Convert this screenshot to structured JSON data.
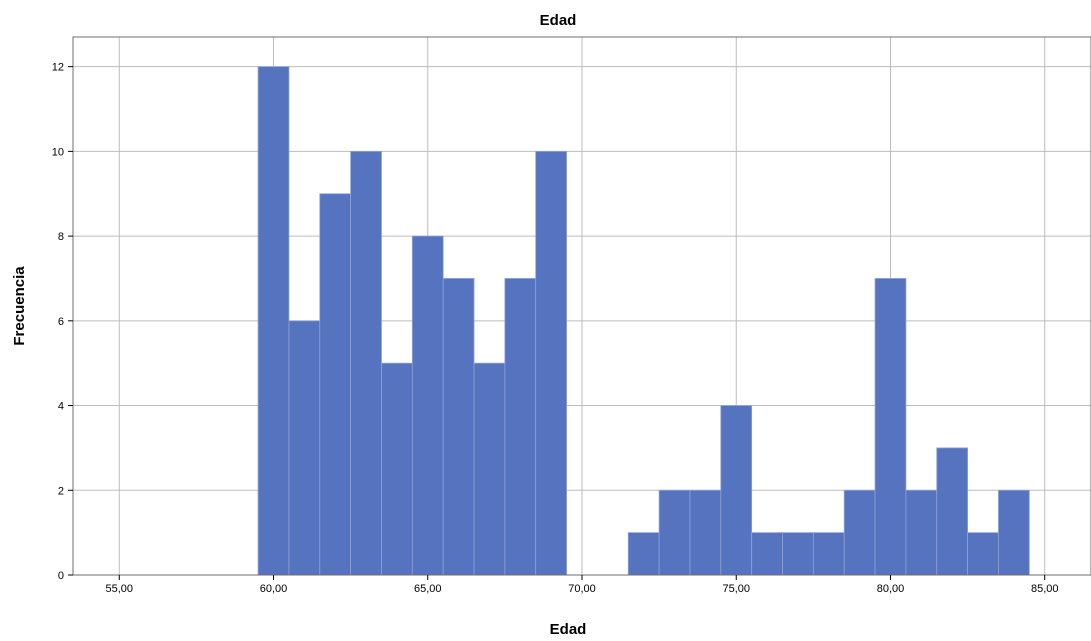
{
  "chart_data": {
    "type": "bar",
    "title": "Edad",
    "xlabel": "Edad",
    "ylabel": "Frecuencia",
    "xlim": [
      53.5,
      86.5
    ],
    "ylim": [
      0,
      12.7
    ],
    "x_ticks": [
      55,
      60,
      65,
      70,
      75,
      80,
      85
    ],
    "x_tick_labels": [
      "55,00",
      "60,00",
      "65,00",
      "70,00",
      "75,00",
      "80,00",
      "85,00"
    ],
    "y_ticks": [
      0,
      2,
      4,
      6,
      8,
      10,
      12
    ],
    "y_tick_labels": [
      "0",
      "2",
      "4",
      "6",
      "8",
      "10",
      "12"
    ],
    "bin_width": 1,
    "bins": [
      {
        "x": 60,
        "count": 12
      },
      {
        "x": 61,
        "count": 6
      },
      {
        "x": 62,
        "count": 9
      },
      {
        "x": 63,
        "count": 10
      },
      {
        "x": 64,
        "count": 5
      },
      {
        "x": 65,
        "count": 8
      },
      {
        "x": 66,
        "count": 7
      },
      {
        "x": 67,
        "count": 5
      },
      {
        "x": 68,
        "count": 7
      },
      {
        "x": 69,
        "count": 10
      },
      {
        "x": 72,
        "count": 1
      },
      {
        "x": 73,
        "count": 2
      },
      {
        "x": 74,
        "count": 2
      },
      {
        "x": 75,
        "count": 4
      },
      {
        "x": 76,
        "count": 1
      },
      {
        "x": 77,
        "count": 1
      },
      {
        "x": 78,
        "count": 1
      },
      {
        "x": 79,
        "count": 2
      },
      {
        "x": 80,
        "count": 7
      },
      {
        "x": 81,
        "count": 2
      },
      {
        "x": 82,
        "count": 3
      },
      {
        "x": 83,
        "count": 1
      },
      {
        "x": 84,
        "count": 2
      }
    ],
    "grid": true,
    "colors": {
      "bar": "#5673BF",
      "bar_edge": "#8FA2D6",
      "grid": "#BDBDBD",
      "frame": "#6E6E6E"
    }
  }
}
